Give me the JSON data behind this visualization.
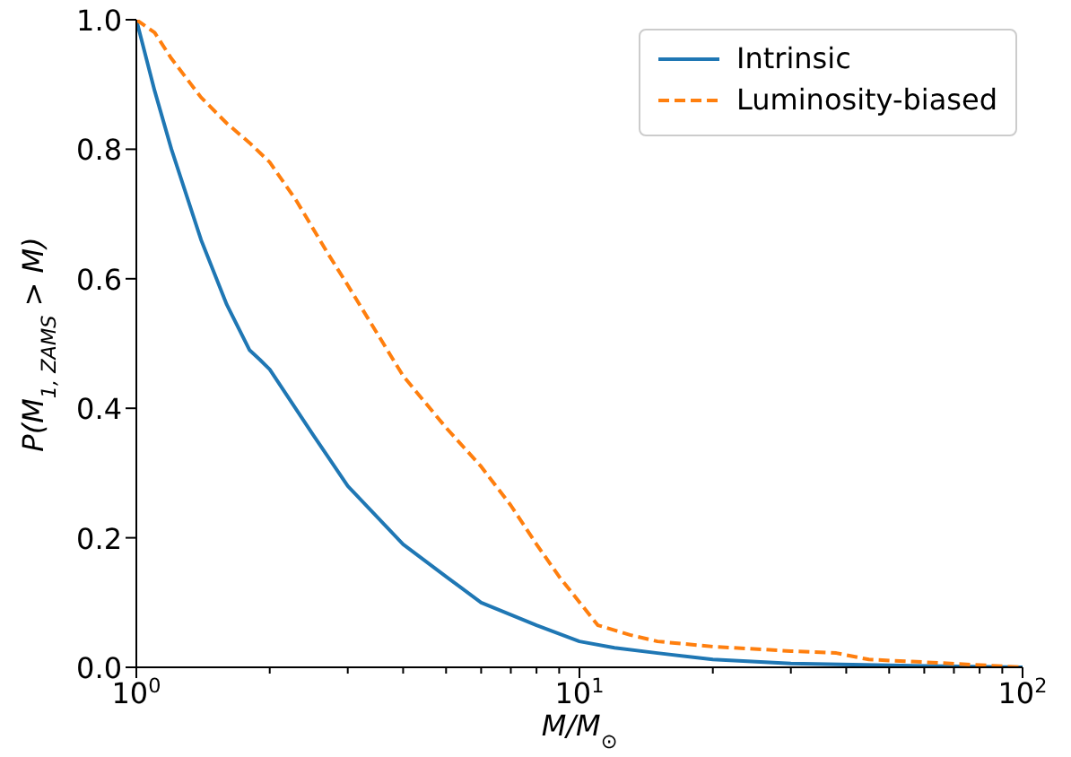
{
  "chart_data": {
    "type": "line",
    "xlabel": "M/M$_{⊙}$",
    "ylabel": "P(M$_{1, ZAMS}$ > M)",
    "log": "x",
    "xlim": [
      1,
      100
    ],
    "ylim": [
      0,
      1
    ],
    "xticks": [
      {
        "value": 1,
        "label": "10$^{0}$"
      },
      {
        "value": 2,
        "label": null
      },
      {
        "value": 3,
        "label": null
      },
      {
        "value": 4,
        "label": null
      },
      {
        "value": 5,
        "label": null
      },
      {
        "value": 6,
        "label": null
      },
      {
        "value": 7,
        "label": null
      },
      {
        "value": 8,
        "label": null
      },
      {
        "value": 9,
        "label": null
      },
      {
        "value": 10,
        "label": "10$^{1}$"
      },
      {
        "value": 20,
        "label": null
      },
      {
        "value": 30,
        "label": null
      },
      {
        "value": 40,
        "label": null
      },
      {
        "value": 50,
        "label": null
      },
      {
        "value": 60,
        "label": null
      },
      {
        "value": 70,
        "label": null
      },
      {
        "value": 80,
        "label": null
      },
      {
        "value": 90,
        "label": null
      },
      {
        "value": 100,
        "label": "10$^{2}$"
      }
    ],
    "yticks": [
      {
        "value": 0,
        "label": "0.0"
      },
      0.2,
      0.4,
      0.6,
      0.8,
      {
        "value": 1,
        "label": "1.0"
      }
    ],
    "grid": false,
    "legend": "top right",
    "marker": "none",
    "series": [
      {
        "name": "Intrinsic",
        "color": "#1f77b4",
        "line_style": "solid",
        "x": [
          1,
          1.1,
          1.2,
          1.4,
          1.6,
          1.8,
          1.9,
          2,
          2.5,
          3,
          4,
          5,
          6,
          8,
          10,
          12,
          15,
          20,
          30,
          50,
          100
        ],
        "values": [
          1.0,
          0.89,
          0.8,
          0.66,
          0.56,
          0.49,
          0.475,
          0.46,
          0.36,
          0.28,
          0.19,
          0.14,
          0.1,
          0.065,
          0.04,
          0.03,
          0.022,
          0.012,
          0.006,
          0.003,
          0.0
        ]
      },
      {
        "name": "Luminosity-biased",
        "color": "#ff7f0e",
        "line_style": "dashed",
        "x": [
          1,
          1.1,
          1.2,
          1.4,
          1.6,
          1.8,
          2,
          2.3,
          2.7,
          3,
          4,
          5,
          6,
          7,
          8,
          9,
          11,
          13,
          15,
          20,
          30,
          38,
          45,
          60,
          100
        ],
        "values": [
          1.0,
          0.98,
          0.94,
          0.88,
          0.84,
          0.81,
          0.78,
          0.72,
          0.64,
          0.59,
          0.45,
          0.37,
          0.31,
          0.25,
          0.19,
          0.14,
          0.065,
          0.05,
          0.04,
          0.032,
          0.025,
          0.022,
          0.012,
          0.008,
          0.0
        ]
      }
    ]
  }
}
